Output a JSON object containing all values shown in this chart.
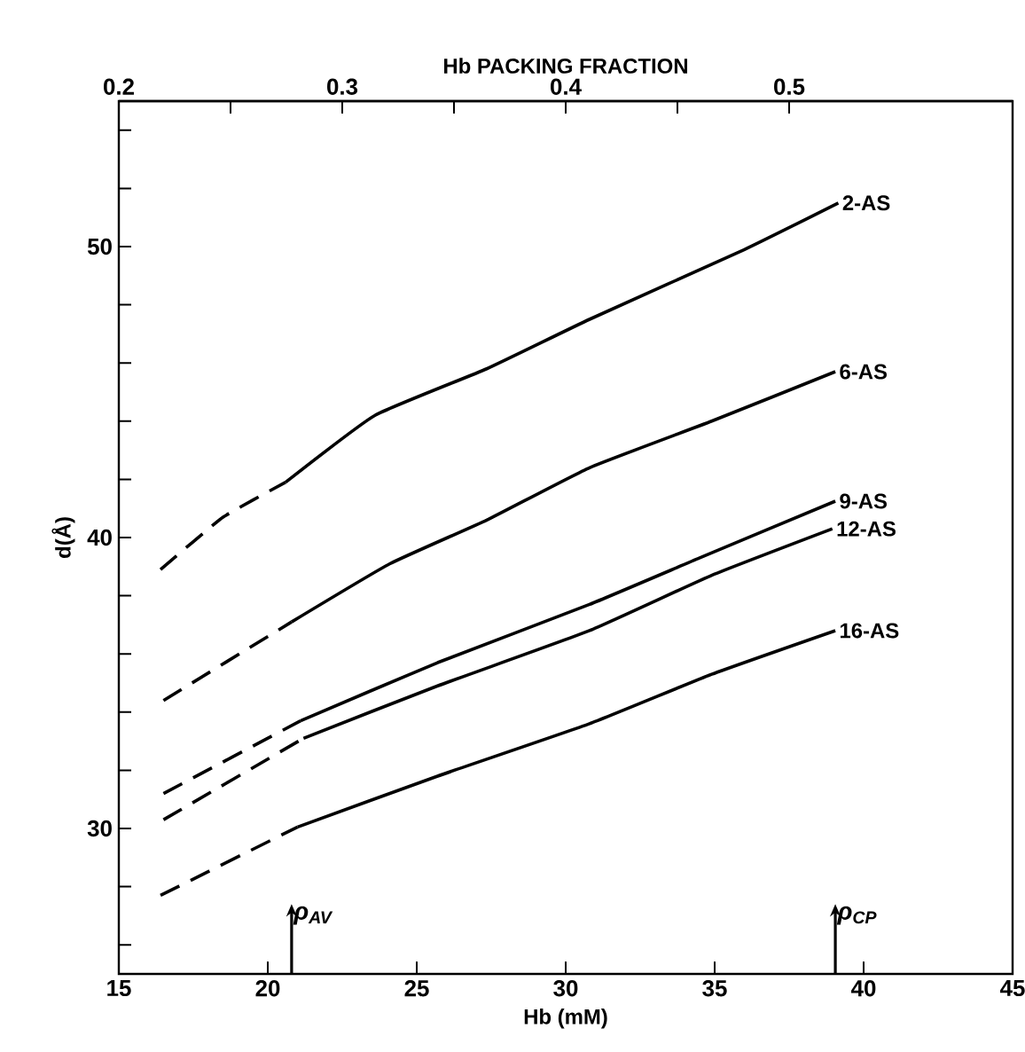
{
  "chart_data": {
    "type": "line",
    "xlabel": "Hb (mM)",
    "ylabel": "d(Å)",
    "x2label": "Hb PACKING FRACTION",
    "xlim": [
      15,
      45
    ],
    "xticks": [
      15,
      20,
      25,
      30,
      35,
      40,
      45
    ],
    "x2lim": [
      0.2,
      0.6
    ],
    "x2ticks": [
      0.2,
      {
        "value": 0.25,
        "label": null
      },
      0.3,
      {
        "value": 0.35,
        "label": null
      },
      0.4,
      {
        "value": 0.45,
        "label": null
      },
      0.5
    ],
    "ylim": [
      25,
      55
    ],
    "yticks": [
      {
        "value": 26,
        "label": null
      },
      {
        "value": 28,
        "label": null
      },
      30,
      {
        "value": 32,
        "label": null
      },
      {
        "value": 34,
        "label": null
      },
      {
        "value": 36,
        "label": null
      },
      {
        "value": 38,
        "label": null
      },
      40,
      {
        "value": 42,
        "label": null
      },
      {
        "value": 44,
        "label": null
      },
      {
        "value": 46,
        "label": null
      },
      {
        "value": 48,
        "label": null
      },
      50,
      {
        "value": 52,
        "label": null
      },
      {
        "value": 54,
        "label": null
      }
    ],
    "series": [
      {
        "color": "#000000",
        "line_style": "dashed",
        "x": [
          16.4,
          18.5,
          20.6
        ],
        "values": [
          38.9,
          40.7,
          41.9
        ]
      },
      {
        "name": "2-AS",
        "color": "#000000",
        "line_style": "solid",
        "x": [
          20.6,
          23.6,
          27.35,
          30.8,
          36,
          39.15
        ],
        "values": [
          41.9,
          44.2,
          45.8,
          47.5,
          49.9,
          51.5
        ]
      },
      {
        "color": "#000000",
        "line_style": "dashed",
        "x": [
          16.5,
          20.8
        ],
        "values": [
          34.4,
          37.1
        ]
      },
      {
        "name": "6-AS",
        "color": "#000000",
        "line_style": "solid",
        "x": [
          20.8,
          24.1,
          27.35,
          30.8,
          34.9,
          39.05
        ],
        "values": [
          37.1,
          39.1,
          40.6,
          42.4,
          44.0,
          45.7
        ]
      },
      {
        "color": "#000000",
        "line_style": "dashed",
        "x": [
          16.5,
          21.1
        ],
        "values": [
          31.2,
          33.7
        ]
      },
      {
        "name": "9-AS",
        "color": "#000000",
        "line_style": "solid",
        "x": [
          21.1,
          25.7,
          30.8,
          34.5,
          39.05
        ],
        "values": [
          33.7,
          35.7,
          37.7,
          39.3,
          41.25
        ]
      },
      {
        "color": "#000000",
        "line_style": "dashed",
        "x": [
          16.5,
          21.2
        ],
        "values": [
          30.3,
          33.1
        ]
      },
      {
        "name": "12-AS",
        "color": "#000000",
        "line_style": "solid",
        "x": [
          21.2,
          25.7,
          30.8,
          34.9,
          38.95
        ],
        "values": [
          33.1,
          34.9,
          36.8,
          38.7,
          40.3
        ]
      },
      {
        "color": "#000000",
        "line_style": "dashed",
        "x": [
          16.4,
          21.0
        ],
        "values": [
          27.7,
          30.05
        ]
      },
      {
        "name": "16-AS",
        "color": "#000000",
        "line_style": "solid",
        "x": [
          21.0,
          25.7,
          30.8,
          34.9,
          39.05
        ],
        "values": [
          30.05,
          31.8,
          33.6,
          35.3,
          36.8
        ]
      }
    ],
    "ref_lines": [
      {
        "axis": "x",
        "value": 20.8,
        "label": "ρ$_{AV}$"
      },
      {
        "axis": "x",
        "value": 39.05,
        "label": "ρ$_{CP}$"
      }
    ]
  }
}
